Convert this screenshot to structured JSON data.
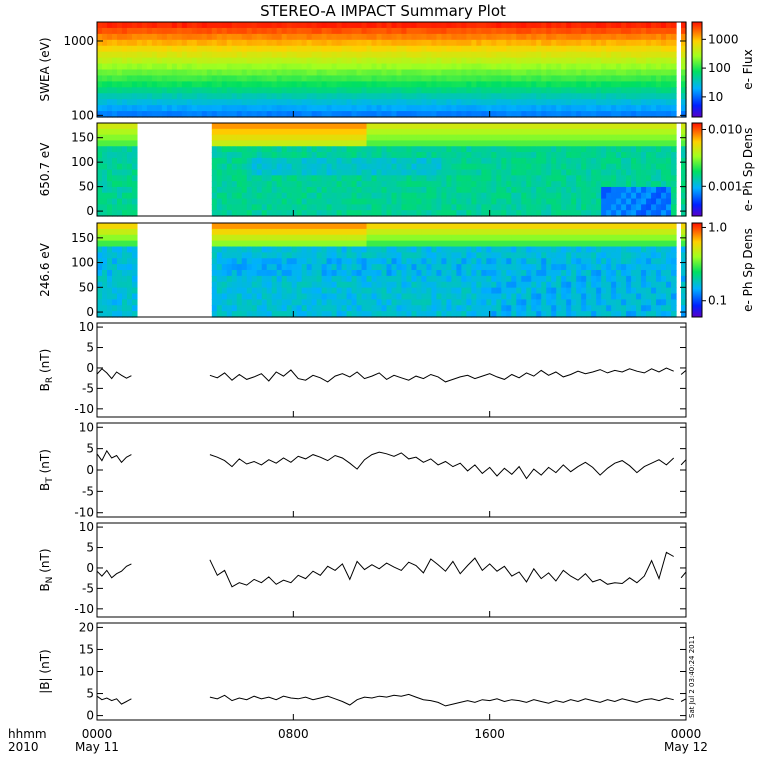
{
  "title": "STEREO-A IMPACT Summary Plot",
  "stamp": "Sat Jul  2 03:40:24 2011",
  "colors": {
    "line": "#000000",
    "frame": "#000000",
    "gap": "#ffffff"
  },
  "time_axis": {
    "row_label": "hhmm",
    "year_label": "2010",
    "ticks": [
      {
        "label": "0000",
        "sub": "May 11",
        "hour": 0
      },
      {
        "label": "0800",
        "sub": "",
        "hour": 8
      },
      {
        "label": "1600",
        "sub": "",
        "hour": 16
      },
      {
        "label": "0000",
        "sub": "May 12",
        "hour": 24
      }
    ]
  },
  "chart_data": [
    {
      "type": "heatmap",
      "ylabel": "SWEA (eV)",
      "yscale": "log",
      "ylim": [
        95,
        1800
      ],
      "yticks": [
        "100",
        "1000"
      ],
      "colorbar": {
        "label": "e- Flux",
        "scale": "log",
        "range": [
          2,
          4000
        ],
        "ticks": [
          "10",
          "100",
          "1000"
        ]
      },
      "data_gaps_hours": [
        [
          23.55,
          23.75
        ]
      ]
    },
    {
      "type": "heatmap",
      "ylabel": "650.7 eV",
      "ylim": [
        -10,
        180
      ],
      "yticks": [
        "0",
        "50",
        "100",
        "150"
      ],
      "colorbar": {
        "label": "e- Ph Sp Dens",
        "scale": "log",
        "range": [
          0.0003,
          0.013
        ],
        "ticks": [
          "0.001",
          "0.010"
        ]
      },
      "data_gaps_hours": [
        [
          1.6,
          4.6
        ],
        [
          23.55,
          23.75
        ]
      ]
    },
    {
      "type": "heatmap",
      "ylabel": "246.6 eV",
      "ylim": [
        -10,
        180
      ],
      "yticks": [
        "0",
        "50",
        "100",
        "150"
      ],
      "colorbar": {
        "label": "e- Ph Sp Dens",
        "scale": "log",
        "range": [
          0.06,
          1.15
        ],
        "ticks": [
          "0.1",
          "1.0"
        ]
      },
      "data_gaps_hours": [
        [
          1.6,
          4.6
        ],
        [
          23.55,
          23.75
        ]
      ]
    },
    {
      "type": "line",
      "ylabel": "B",
      "ylabel_sub": "R",
      "ylabel_unit": "(nT)",
      "ylim": [
        -12,
        11
      ],
      "yticks": [
        "-10",
        "-5",
        "0",
        "5",
        "10"
      ],
      "segments": [
        {
          "x": [
            0.0,
            0.2,
            0.4,
            0.6,
            0.8,
            1.0,
            1.2,
            1.4
          ],
          "y": [
            -1.5,
            -0.2,
            -1.2,
            -2.6,
            -1.0,
            -1.8,
            -2.5,
            -1.9
          ]
        },
        {
          "x": [
            4.6,
            4.9,
            5.2,
            5.5,
            5.8,
            6.1,
            6.4,
            6.7,
            7.0,
            7.3,
            7.6,
            7.9,
            8.2,
            8.5,
            8.8,
            9.1,
            9.4,
            9.7,
            10.0,
            10.3,
            10.6,
            10.9,
            11.2,
            11.5,
            11.8,
            12.1,
            12.4,
            12.7,
            13.0,
            13.3,
            13.6,
            13.9,
            14.2,
            14.5,
            14.8,
            15.1,
            15.4,
            15.7,
            16.0,
            16.3,
            16.6,
            16.9,
            17.2,
            17.5,
            17.8,
            18.1,
            18.4,
            18.7,
            19.0,
            19.3,
            19.6,
            19.9,
            20.2,
            20.5,
            20.8,
            21.1,
            21.4,
            21.7,
            22.0,
            22.3,
            22.6,
            22.9,
            23.2,
            23.5
          ],
          "y": [
            -1.8,
            -2.4,
            -1.2,
            -3.0,
            -1.6,
            -2.8,
            -2.2,
            -1.4,
            -3.2,
            -1.0,
            -2.0,
            -0.5,
            -2.6,
            -3.0,
            -1.8,
            -2.4,
            -3.4,
            -2.0,
            -1.4,
            -2.2,
            -1.0,
            -2.6,
            -2.0,
            -1.2,
            -2.8,
            -1.8,
            -2.4,
            -3.0,
            -2.0,
            -2.6,
            -1.6,
            -2.2,
            -3.4,
            -2.8,
            -2.2,
            -1.8,
            -2.6,
            -2.0,
            -1.4,
            -2.2,
            -2.8,
            -1.6,
            -2.4,
            -1.2,
            -2.0,
            -0.6,
            -1.8,
            -1.0,
            -2.2,
            -1.6,
            -0.8,
            -1.4,
            -1.0,
            -0.4,
            -1.2,
            -0.6,
            -1.0,
            -0.2,
            -0.8,
            -1.2,
            -0.2,
            -1.0,
            0.0,
            -0.8
          ]
        },
        {
          "x": [
            23.8,
            24.0
          ],
          "y": [
            -1.6,
            -0.6
          ]
        }
      ]
    },
    {
      "type": "line",
      "ylabel": "B",
      "ylabel_sub": "T",
      "ylabel_unit": "(nT)",
      "ylim": [
        -11,
        11
      ],
      "yticks": [
        "-10",
        "-5",
        "0",
        "5",
        "10"
      ],
      "segments": [
        {
          "x": [
            0.0,
            0.2,
            0.4,
            0.6,
            0.8,
            1.0,
            1.2,
            1.4
          ],
          "y": [
            3.8,
            2.2,
            4.5,
            2.8,
            3.4,
            1.8,
            3.0,
            3.6
          ]
        },
        {
          "x": [
            4.6,
            4.9,
            5.2,
            5.5,
            5.8,
            6.1,
            6.4,
            6.7,
            7.0,
            7.3,
            7.6,
            7.9,
            8.2,
            8.5,
            8.8,
            9.1,
            9.4,
            9.7,
            10.0,
            10.3,
            10.6,
            10.9,
            11.2,
            11.5,
            11.8,
            12.1,
            12.4,
            12.7,
            13.0,
            13.3,
            13.6,
            13.9,
            14.2,
            14.5,
            14.8,
            15.1,
            15.4,
            15.7,
            16.0,
            16.3,
            16.6,
            16.9,
            17.2,
            17.5,
            17.8,
            18.1,
            18.4,
            18.7,
            19.0,
            19.3,
            19.6,
            19.9,
            20.2,
            20.5,
            20.8,
            21.1,
            21.4,
            21.7,
            22.0,
            22.3,
            22.6,
            22.9,
            23.2,
            23.5
          ],
          "y": [
            3.6,
            3.0,
            2.2,
            0.8,
            2.6,
            1.4,
            2.0,
            1.2,
            2.4,
            1.6,
            2.8,
            1.8,
            3.2,
            2.6,
            3.6,
            3.0,
            2.2,
            3.4,
            2.8,
            1.6,
            0.2,
            2.4,
            3.6,
            4.2,
            3.8,
            3.2,
            4.0,
            2.6,
            3.0,
            1.8,
            2.6,
            1.2,
            2.0,
            0.8,
            1.6,
            -0.2,
            1.2,
            -0.8,
            0.6,
            -1.4,
            0.4,
            -1.0,
            0.8,
            -2.0,
            0.2,
            -1.2,
            0.6,
            -0.6,
            1.2,
            -0.4,
            0.8,
            1.8,
            0.6,
            -1.2,
            0.4,
            1.6,
            2.2,
            1.0,
            -0.6,
            0.8,
            1.6,
            2.4,
            1.2,
            2.8
          ]
        },
        {
          "x": [
            23.8,
            24.0
          ],
          "y": [
            1.2,
            2.4
          ]
        }
      ]
    },
    {
      "type": "line",
      "ylabel": "B",
      "ylabel_sub": "N",
      "ylabel_unit": "(nT)",
      "ylim": [
        -12,
        11
      ],
      "yticks": [
        "-10",
        "-5",
        "0",
        "5",
        "10"
      ],
      "segments": [
        {
          "x": [
            0.0,
            0.2,
            0.4,
            0.6,
            0.8,
            1.0,
            1.2,
            1.4
          ],
          "y": [
            -0.8,
            -2.0,
            -0.6,
            -2.4,
            -1.4,
            -0.8,
            0.4,
            1.0
          ]
        },
        {
          "x": [
            4.6,
            4.9,
            5.2,
            5.5,
            5.8,
            6.1,
            6.4,
            6.7,
            7.0,
            7.3,
            7.6,
            7.9,
            8.2,
            8.5,
            8.8,
            9.1,
            9.4,
            9.7,
            10.0,
            10.3,
            10.6,
            10.9,
            11.2,
            11.5,
            11.8,
            12.1,
            12.4,
            12.7,
            13.0,
            13.3,
            13.6,
            13.9,
            14.2,
            14.5,
            14.8,
            15.1,
            15.4,
            15.7,
            16.0,
            16.3,
            16.6,
            16.9,
            17.2,
            17.5,
            17.8,
            18.1,
            18.4,
            18.7,
            19.0,
            19.3,
            19.6,
            19.9,
            20.2,
            20.5,
            20.8,
            21.1,
            21.4,
            21.7,
            22.0,
            22.3,
            22.6,
            22.9,
            23.2,
            23.5
          ],
          "y": [
            2.0,
            -1.8,
            -0.6,
            -4.6,
            -3.6,
            -4.2,
            -2.8,
            -3.6,
            -2.2,
            -4.0,
            -3.0,
            -3.6,
            -1.8,
            -2.6,
            -0.8,
            -1.8,
            0.4,
            -0.6,
            1.0,
            -2.8,
            1.6,
            -0.4,
            0.8,
            -0.2,
            1.2,
            0.2,
            -0.6,
            1.4,
            0.6,
            -1.2,
            2.2,
            0.8,
            -0.8,
            1.6,
            -1.4,
            0.6,
            2.4,
            -0.6,
            1.0,
            -0.8,
            0.4,
            -2.0,
            -1.0,
            -3.4,
            -0.2,
            -2.6,
            -1.2,
            -3.2,
            -0.6,
            -2.0,
            -3.0,
            -1.4,
            -3.4,
            -2.8,
            -4.0,
            -3.6,
            -3.8,
            -2.4,
            -3.6,
            -2.0,
            1.8,
            -2.6,
            3.8,
            2.8
          ]
        },
        {
          "x": [
            23.8,
            24.0
          ],
          "y": [
            -2.4,
            -1.0
          ]
        }
      ]
    },
    {
      "type": "line",
      "ylabel": "|B|",
      "ylabel_sub": "",
      "ylabel_unit": "(nT)",
      "ylim": [
        -1,
        21
      ],
      "yticks": [
        "0",
        "5",
        "10",
        "15",
        "20"
      ],
      "segments": [
        {
          "x": [
            0.0,
            0.2,
            0.4,
            0.6,
            0.8,
            1.0,
            1.2,
            1.4
          ],
          "y": [
            4.4,
            3.6,
            4.0,
            3.4,
            3.8,
            2.6,
            3.2,
            3.8
          ]
        },
        {
          "x": [
            4.6,
            4.9,
            5.2,
            5.5,
            5.8,
            6.1,
            6.4,
            6.7,
            7.0,
            7.3,
            7.6,
            7.9,
            8.2,
            8.5,
            8.8,
            9.1,
            9.4,
            9.7,
            10.0,
            10.3,
            10.6,
            10.9,
            11.2,
            11.5,
            11.8,
            12.1,
            12.4,
            12.7,
            13.0,
            13.3,
            13.6,
            13.9,
            14.2,
            14.5,
            14.8,
            15.1,
            15.4,
            15.7,
            16.0,
            16.3,
            16.6,
            16.9,
            17.2,
            17.5,
            17.8,
            18.1,
            18.4,
            18.7,
            19.0,
            19.3,
            19.6,
            19.9,
            20.2,
            20.5,
            20.8,
            21.1,
            21.4,
            21.7,
            22.0,
            22.3,
            22.6,
            22.9,
            23.2,
            23.5
          ],
          "y": [
            4.2,
            3.8,
            4.6,
            3.4,
            4.0,
            3.6,
            4.4,
            3.8,
            4.2,
            3.6,
            4.4,
            4.0,
            3.8,
            4.2,
            3.6,
            4.0,
            4.4,
            3.8,
            3.2,
            2.4,
            3.6,
            4.2,
            4.0,
            4.4,
            4.2,
            4.6,
            4.4,
            4.8,
            4.2,
            3.6,
            3.4,
            3.0,
            2.2,
            2.6,
            3.0,
            3.4,
            3.0,
            3.6,
            3.4,
            3.8,
            3.2,
            3.6,
            3.4,
            3.0,
            3.6,
            3.2,
            2.8,
            3.4,
            3.0,
            3.6,
            3.2,
            3.8,
            3.4,
            3.0,
            3.6,
            3.2,
            3.8,
            3.4,
            3.0,
            3.6,
            3.8,
            3.4,
            4.0,
            3.6
          ]
        },
        {
          "x": [
            23.8,
            24.0
          ],
          "y": [
            3.2,
            3.8
          ]
        }
      ]
    }
  ]
}
